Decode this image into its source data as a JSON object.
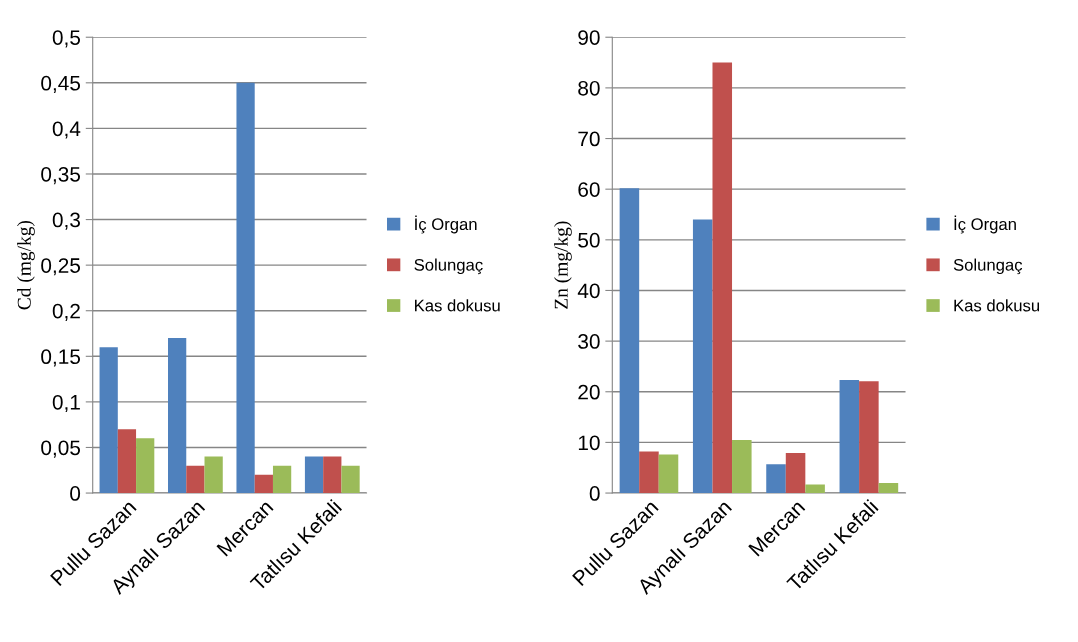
{
  "chart_data": [
    {
      "type": "bar",
      "ylabel": "Cd (mg/kg)",
      "categories": [
        "Pullu Sazan",
        "Aynalı Sazan",
        "Mercan",
        "Tatlısu Kefali"
      ],
      "series": [
        {
          "name": "İç Organ",
          "color": "#4f81bd",
          "values": [
            0.16,
            0.17,
            0.45,
            0.04
          ]
        },
        {
          "name": "Solungaç",
          "color": "#c0504d",
          "values": [
            0.07,
            0.03,
            0.02,
            0.04
          ]
        },
        {
          "name": "Kas dokusu",
          "color": "#9bbb59",
          "values": [
            0.06,
            0.04,
            0.03,
            0.03
          ]
        }
      ],
      "ylim": [
        0,
        0.5
      ],
      "yticks": [
        0,
        {
          "value": 0.05,
          "label": "0,05"
        },
        {
          "value": 0.1,
          "label": "0,1"
        },
        {
          "value": 0.15,
          "label": "0,15"
        },
        {
          "value": 0.2,
          "label": "0,2"
        },
        {
          "value": 0.25,
          "label": "0,25"
        },
        {
          "value": 0.3,
          "label": "0,3"
        },
        {
          "value": 0.35,
          "label": "0,35"
        },
        {
          "value": 0.4,
          "label": "0,4"
        },
        {
          "value": 0.45,
          "label": "0,45"
        },
        {
          "value": 0.5,
          "label": "0,5"
        }
      ],
      "grid": "y",
      "legend": "right"
    },
    {
      "type": "bar",
      "ylabel": "Zn (mg/kg)",
      "categories": [
        "Pullu Sazan",
        "Aynalı Sazan",
        "Mercan",
        "Tatlısu Kefali"
      ],
      "series": [
        {
          "name": "İç Organ",
          "color": "#4f81bd",
          "values": [
            60.2,
            54,
            5.7,
            22.3
          ]
        },
        {
          "name": "Solungaç",
          "color": "#c0504d",
          "values": [
            8.2,
            85,
            7.9,
            22.1
          ]
        },
        {
          "name": "Kas dokusu",
          "color": "#9bbb59",
          "values": [
            7.6,
            10.5,
            1.7,
            2.0
          ]
        }
      ],
      "ylim": [
        0,
        90
      ],
      "yticks": [
        0,
        10,
        20,
        30,
        40,
        50,
        60,
        70,
        80,
        90
      ],
      "grid": "y",
      "legend": "right"
    }
  ]
}
